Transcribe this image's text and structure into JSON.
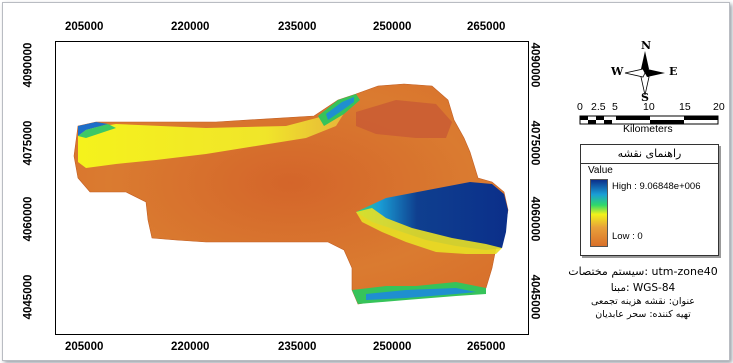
{
  "map": {
    "x_ticks": [
      "205000",
      "220000",
      "235000",
      "250000",
      "265000"
    ],
    "y_ticks": [
      "4090000",
      "4075000",
      "4060000",
      "4045000"
    ]
  },
  "north_arrow": {
    "n": "N",
    "s": "S",
    "e": "E",
    "w": "W"
  },
  "scale_bar": {
    "labels": [
      "0",
      "2.5",
      "5",
      "10",
      "15",
      "20"
    ],
    "unit": "Kilometers"
  },
  "legend": {
    "title": "راهنمای نقشه",
    "value_label": "Value",
    "high_label": "High : 9.06848e+006",
    "low_label": "Low : 0",
    "colors": [
      "#0b2f8a",
      "#1a9fd6",
      "#2fd86a",
      "#f2f21a",
      "#e8a03a",
      "#d9702a"
    ]
  },
  "info": {
    "system": "سیستم مختصات: utm-zone40",
    "datum": "مبنا: WGS-84",
    "title": "عنوان: نقشه هزینه تجمعی",
    "author": "تهیه کننده: سحر عابدیان"
  }
}
